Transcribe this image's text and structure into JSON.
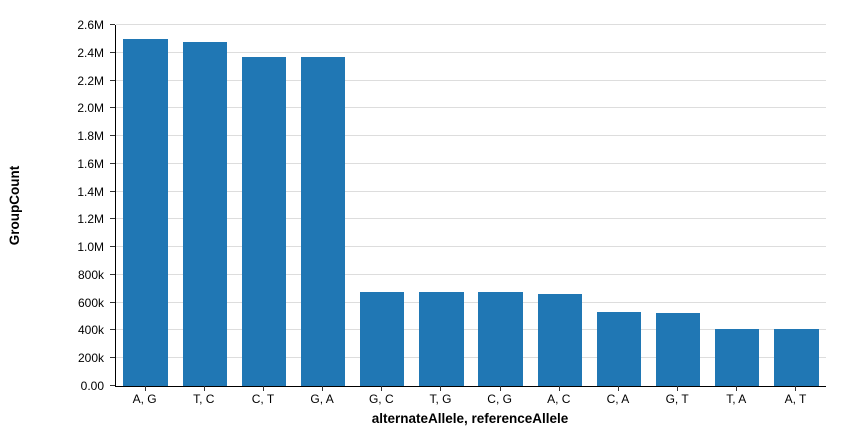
{
  "chart_data": {
    "type": "bar",
    "title": "",
    "xlabel": "alternateAllele, referenceAllele",
    "ylabel": "GroupCount",
    "categories": [
      "A, G",
      "T, C",
      "C, T",
      "G, A",
      "G, C",
      "T, G",
      "C, G",
      "A, C",
      "C, A",
      "G, T",
      "T, A",
      "A, T"
    ],
    "values": [
      2500000,
      2480000,
      2370000,
      2370000,
      680000,
      678000,
      675000,
      665000,
      530000,
      528000,
      410000,
      408000
    ],
    "ylim": [
      0,
      2600000
    ],
    "ytick_labels": [
      "0.00",
      "200k",
      "400k",
      "600k",
      "800k",
      "1.0M",
      "1.2M",
      "1.4M",
      "1.6M",
      "1.8M",
      "2.0M",
      "2.2M",
      "2.4M",
      "2.6M"
    ],
    "ytick_values": [
      0,
      200000,
      400000,
      600000,
      800000,
      1000000,
      1200000,
      1400000,
      1600000,
      1800000,
      2000000,
      2200000,
      2400000,
      2600000
    ],
    "bar_color": "#2077b4",
    "grid": true,
    "legend": false,
    "background": "#ffffff"
  }
}
